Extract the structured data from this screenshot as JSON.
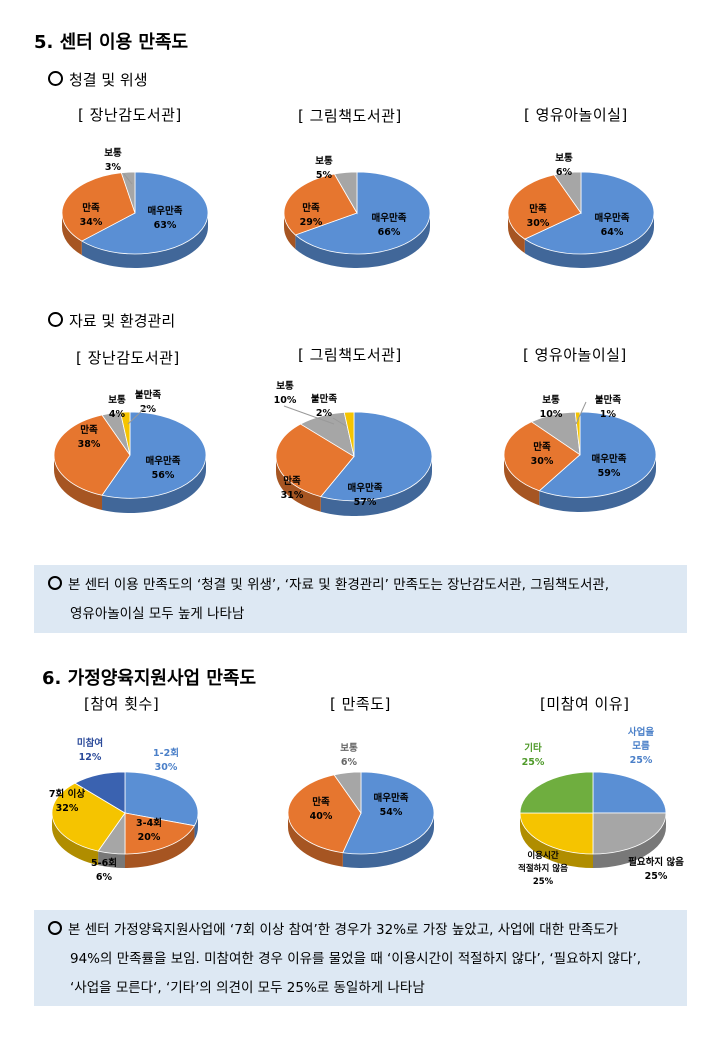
{
  "sec5": {
    "title": "5. 센터 이용 만족도",
    "sub1": "청결 및 위생",
    "sub2": "자료 및 환경관리",
    "facilities": [
      "[ 장난감도서관]",
      "[ 그림책도서관]",
      "[ 영유아놀이실]"
    ],
    "note_line1": "본 센터 이용 만족도의 ‘청결 및 위생’, ‘자료 및 환경관리’ 만족도는 장난감도서관, 그림책도서관,",
    "note_line2": "영유아놀이실  모두 높게 나타남"
  },
  "sec6": {
    "title": "6. 가정양육지원사업 만족도",
    "charts": [
      "[참여 횟수]",
      "[ 만족도]",
      "[미참여 이유]"
    ],
    "note_line1": "본 센터  가정양육지원사업에 ‘7회 이상 참여’한 경우가 32%로 가장 높았고, 사업에 대한 만족도가",
    "note_line2": "94%의 만족률을 보임. 미참여한 경우 이유를 물었을 때 ‘이용시간이 적절하지 않다’, ‘필요하지 않다’,",
    "note_line3": "‘사업을 모른다‘, ‘기타’의 의견이 모두 25%로 동일하게 나타남"
  },
  "colors": {
    "blue": "#5a8fd4",
    "orange": "#e6762f",
    "grey": "#a6a6a6",
    "yellow": "#f5c400",
    "green": "#6fae3f",
    "navy": "#3a62b0",
    "note_bg": "#dde8f3"
  },
  "chart_data": [
    {
      "type": "pie",
      "title": "[ 장난감도서관]",
      "group": "청결 및 위생",
      "categories": [
        "매우만족",
        "만족",
        "보통"
      ],
      "values": [
        63,
        34,
        3
      ],
      "labels": [
        "63%",
        "34%",
        "3%"
      ]
    },
    {
      "type": "pie",
      "title": "[ 그림책도서관]",
      "group": "청결 및 위생",
      "categories": [
        "매우만족",
        "만족",
        "보통"
      ],
      "values": [
        66,
        29,
        5
      ],
      "labels": [
        "66%",
        "29%",
        "5%"
      ]
    },
    {
      "type": "pie",
      "title": "[ 영유아놀이실]",
      "group": "청결 및 위생",
      "categories": [
        "매우만족",
        "만족",
        "보통"
      ],
      "values": [
        64,
        30,
        6
      ],
      "labels": [
        "64%",
        "30%",
        "6%"
      ]
    },
    {
      "type": "pie",
      "title": "[ 장난감도서관]",
      "group": "자료 및 환경관리",
      "categories": [
        "매우만족",
        "만족",
        "보통",
        "불만족"
      ],
      "values": [
        56,
        38,
        4,
        2
      ],
      "labels": [
        "56%",
        "38%",
        "4%",
        "2%"
      ]
    },
    {
      "type": "pie",
      "title": "[ 그림책도서관]",
      "group": "자료 및 환경관리",
      "categories": [
        "매우만족",
        "만족",
        "보통",
        "불만족"
      ],
      "values": [
        57,
        31,
        10,
        2
      ],
      "labels": [
        "57%",
        "31%",
        "10%",
        "2%"
      ]
    },
    {
      "type": "pie",
      "title": "[ 영유아놀이실]",
      "group": "자료 및 환경관리",
      "categories": [
        "매우만족",
        "만족",
        "보통",
        "불만족"
      ],
      "values": [
        59,
        30,
        10,
        1
      ],
      "labels": [
        "59%",
        "30%",
        "10%",
        "1%"
      ]
    },
    {
      "type": "pie",
      "title": "[참여 횟수]",
      "categories": [
        "1-2회",
        "3-4회",
        "5-6회",
        "7회 이상",
        "미참여"
      ],
      "values": [
        30,
        20,
        6,
        32,
        12
      ],
      "labels": [
        "30%",
        "20%",
        "6%",
        "32%",
        "12%"
      ]
    },
    {
      "type": "pie",
      "title": "[ 만족도]",
      "categories": [
        "매우만족",
        "만족",
        "보통"
      ],
      "values": [
        54,
        40,
        6
      ],
      "labels": [
        "54%",
        "40%",
        "6%"
      ]
    },
    {
      "type": "pie",
      "title": "[미참여 이유]",
      "categories": [
        "사업을 모름",
        "필요하지 않음",
        "이용시간 적절하지 않음",
        "기타"
      ],
      "values": [
        25,
        25,
        25,
        25
      ],
      "labels": [
        "25%",
        "25%",
        "25%",
        "25%"
      ]
    }
  ]
}
